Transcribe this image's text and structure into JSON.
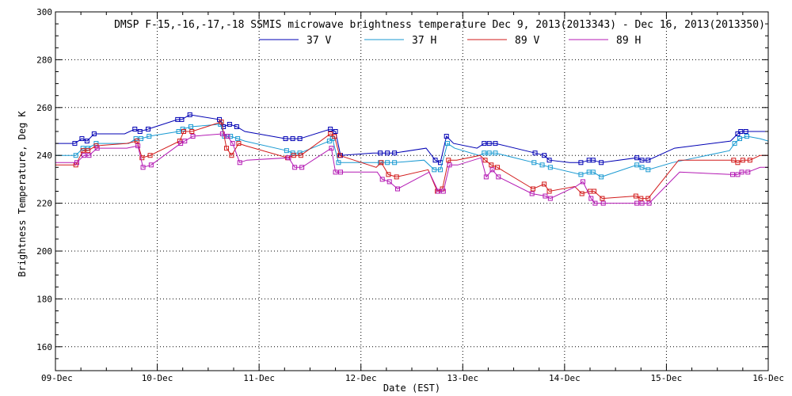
{
  "chart_data": {
    "type": "line",
    "title": "DMSP F-15,-16,-17,-18 SSMIS microwave brightness temperature Dec  9, 2013(2013343) - Dec 16, 2013(2013350)",
    "xlabel": "Date (EST)",
    "ylabel": "Brightness Temperature, Deg K",
    "xlim": [
      0,
      7
    ],
    "ylim": [
      150,
      300
    ],
    "x_tick_values": [
      0,
      1,
      2,
      3,
      4,
      5,
      6,
      7
    ],
    "x_tick_labels": [
      "09-Dec",
      "10-Dec",
      "11-Dec",
      "12-Dec",
      "13-Dec",
      "14-Dec",
      "15-Dec",
      "16-Dec"
    ],
    "y_ticks": [
      160,
      180,
      200,
      220,
      240,
      260,
      280,
      300
    ],
    "grid": true,
    "legend_position": "top-center",
    "series": [
      {
        "name": "37 V",
        "color": "#0000b4",
        "x": [
          0.0,
          0.19,
          0.26,
          0.31,
          0.38,
          0.68,
          0.78,
          0.83,
          0.91,
          1.2,
          1.24,
          1.32,
          1.61,
          1.65,
          1.71,
          1.78,
          1.86,
          2.26,
          2.33,
          2.4,
          2.7,
          2.75,
          2.8,
          3.12,
          3.19,
          3.26,
          3.33,
          3.64,
          3.73,
          3.78,
          3.84,
          3.91,
          4.14,
          4.21,
          4.26,
          4.32,
          4.71,
          4.8,
          4.85,
          5.05,
          5.16,
          5.24,
          5.28,
          5.36,
          5.71,
          5.76,
          5.82,
          6.08,
          6.63,
          6.7,
          6.73,
          6.78,
          6.85,
          7.0
        ],
        "y": [
          245,
          245,
          247,
          246,
          249,
          249,
          251,
          250,
          251,
          255,
          255,
          257,
          255,
          252,
          253,
          252,
          250,
          247,
          247,
          247,
          251,
          250,
          240,
          241,
          241,
          241,
          241,
          243,
          238,
          237,
          248,
          245,
          243,
          245,
          245,
          245,
          241,
          240,
          238,
          237,
          237,
          238,
          238,
          237,
          239,
          238,
          238,
          243,
          246,
          249,
          250,
          250,
          250,
          250
        ],
        "markers_x": [
          0.19,
          0.26,
          0.31,
          0.38,
          0.78,
          0.83,
          0.91,
          1.2,
          1.24,
          1.32,
          1.61,
          1.65,
          1.71,
          1.78,
          2.26,
          2.33,
          2.4,
          2.7,
          2.75,
          2.8,
          3.19,
          3.26,
          3.33,
          3.73,
          3.78,
          3.84,
          4.21,
          4.26,
          4.32,
          4.71,
          4.8,
          4.85,
          5.16,
          5.24,
          5.28,
          5.36,
          5.71,
          5.76,
          5.82,
          6.7,
          6.73,
          6.78
        ]
      },
      {
        "name": "37 H",
        "color": "#1a9ad2",
        "x": [
          0.0,
          0.2,
          0.27,
          0.32,
          0.4,
          0.72,
          0.79,
          0.84,
          0.92,
          1.21,
          1.25,
          1.33,
          1.62,
          1.66,
          1.72,
          1.79,
          1.86,
          2.27,
          2.33,
          2.4,
          2.69,
          2.72,
          2.78,
          2.84,
          3.14,
          3.19,
          3.26,
          3.33,
          3.62,
          3.72,
          3.78,
          3.85,
          3.92,
          4.16,
          4.21,
          4.26,
          4.32,
          4.7,
          4.78,
          4.86,
          5.16,
          5.24,
          5.28,
          5.36,
          5.71,
          5.76,
          5.82,
          6.06,
          6.62,
          6.67,
          6.72,
          6.79,
          6.92,
          7.0
        ],
        "y": [
          240,
          240,
          243,
          243,
          245,
          245,
          247,
          247,
          248,
          250,
          251,
          252,
          253,
          248,
          248,
          247,
          246,
          242,
          241,
          241,
          246,
          247,
          237,
          237,
          237,
          237,
          237,
          237,
          238,
          234,
          234,
          245,
          243,
          240,
          241,
          241,
          241,
          237,
          236,
          235,
          232,
          233,
          233,
          231,
          236,
          235,
          234,
          237,
          242,
          245,
          247,
          248,
          247,
          246
        ],
        "markers_x": [
          0.2,
          0.27,
          0.32,
          0.4,
          0.79,
          0.84,
          0.92,
          1.21,
          1.25,
          1.33,
          1.62,
          1.66,
          1.72,
          1.79,
          2.27,
          2.33,
          2.4,
          2.69,
          2.72,
          2.78,
          3.19,
          3.26,
          3.33,
          3.72,
          3.78,
          3.85,
          4.21,
          4.26,
          4.32,
          4.7,
          4.78,
          4.86,
          5.16,
          5.24,
          5.28,
          5.36,
          5.71,
          5.76,
          5.82,
          6.67,
          6.72,
          6.79
        ]
      },
      {
        "name": "89 V",
        "color": "#d21a1a",
        "x": [
          0.0,
          0.2,
          0.27,
          0.32,
          0.4,
          0.7,
          0.8,
          0.85,
          0.93,
          1.22,
          1.26,
          1.34,
          1.63,
          1.68,
          1.73,
          1.8,
          1.87,
          2.28,
          2.34,
          2.41,
          2.7,
          2.74,
          2.79,
          2.86,
          3.15,
          3.2,
          3.27,
          3.35,
          3.66,
          3.75,
          3.8,
          3.86,
          3.94,
          4.17,
          4.22,
          4.28,
          4.34,
          4.69,
          4.8,
          4.85,
          5.1,
          5.17,
          5.25,
          5.29,
          5.37,
          5.7,
          5.75,
          5.82,
          6.12,
          6.66,
          6.7,
          6.75,
          6.82,
          6.92,
          7.0
        ],
        "y": [
          236,
          236,
          242,
          242,
          244,
          245,
          246,
          239,
          240,
          246,
          250,
          250,
          254,
          243,
          240,
          245,
          244,
          239,
          240,
          240,
          249,
          248,
          240,
          239,
          235,
          237,
          232,
          231,
          234,
          225,
          226,
          238,
          238,
          240,
          238,
          236,
          235,
          226,
          228,
          225,
          227,
          224,
          225,
          225,
          222,
          223,
          222,
          222,
          238,
          238,
          237,
          238,
          238,
          240,
          240
        ],
        "markers_x": [
          0.2,
          0.27,
          0.32,
          0.4,
          0.8,
          0.85,
          0.93,
          1.22,
          1.26,
          1.34,
          1.63,
          1.68,
          1.73,
          1.8,
          2.28,
          2.34,
          2.41,
          2.7,
          2.74,
          2.79,
          3.2,
          3.27,
          3.35,
          3.75,
          3.8,
          3.86,
          4.22,
          4.28,
          4.34,
          4.69,
          4.8,
          4.85,
          5.17,
          5.25,
          5.29,
          5.37,
          5.7,
          5.75,
          5.82,
          6.66,
          6.7,
          6.75,
          6.82
        ]
      },
      {
        "name": "89 H",
        "color": "#b41ab4",
        "x": [
          0.0,
          0.21,
          0.28,
          0.33,
          0.41,
          0.7,
          0.81,
          0.86,
          0.94,
          1.23,
          1.27,
          1.35,
          1.64,
          1.69,
          1.74,
          1.81,
          1.88,
          2.29,
          2.35,
          2.42,
          2.71,
          2.75,
          2.8,
          2.87,
          3.16,
          3.21,
          3.28,
          3.36,
          3.67,
          3.76,
          3.81,
          3.87,
          3.95,
          4.18,
          4.23,
          4.29,
          4.35,
          4.68,
          4.81,
          4.86,
          5.11,
          5.18,
          5.26,
          5.3,
          5.38,
          5.71,
          5.76,
          5.83,
          6.13,
          6.65,
          6.7,
          6.74,
          6.8,
          6.92,
          7.0
        ],
        "y": [
          237,
          237,
          240,
          240,
          243,
          243,
          244,
          235,
          236,
          245,
          246,
          248,
          249,
          248,
          245,
          237,
          238,
          239,
          235,
          235,
          243,
          233,
          233,
          233,
          233,
          230,
          229,
          226,
          233,
          225,
          225,
          236,
          236,
          239,
          231,
          234,
          231,
          224,
          223,
          222,
          227,
          229,
          222,
          220,
          220,
          220,
          220,
          220,
          233,
          232,
          232,
          233,
          233,
          235,
          235
        ],
        "markers_x": [
          0.21,
          0.28,
          0.33,
          0.41,
          0.81,
          0.86,
          0.94,
          1.23,
          1.27,
          1.35,
          1.64,
          1.69,
          1.74,
          1.81,
          2.29,
          2.35,
          2.42,
          2.71,
          2.75,
          2.8,
          3.21,
          3.28,
          3.36,
          3.76,
          3.81,
          3.87,
          4.23,
          4.29,
          4.35,
          4.68,
          4.81,
          4.86,
          5.18,
          5.26,
          5.3,
          5.38,
          5.71,
          5.76,
          5.83,
          6.65,
          6.7,
          6.74,
          6.8
        ]
      }
    ]
  }
}
